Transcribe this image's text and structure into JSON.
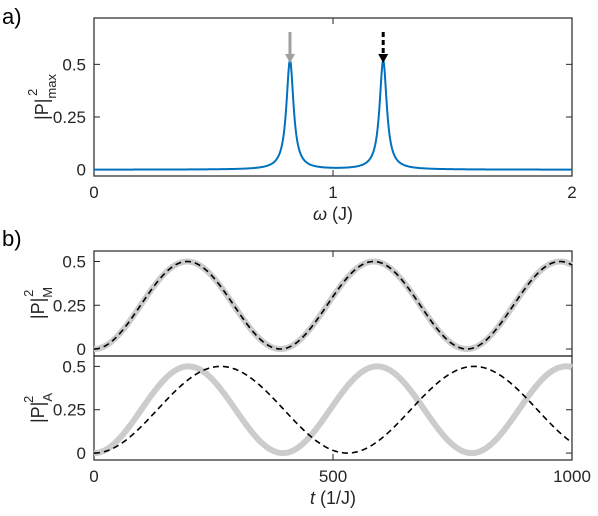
{
  "chart_data": [
    {
      "type": "line",
      "panel_label": "a)",
      "xlabel_symbol": "ω",
      "xlabel_unit": " (J)",
      "ylabel_base": "|P|",
      "ylabel_sup": "2",
      "ylabel_sub": "max",
      "xlim": [
        0,
        2
      ],
      "ylim": [
        -0.03,
        0.72
      ],
      "xticks": [
        0,
        1,
        2
      ],
      "xtick_labels": [
        "0",
        "1",
        "2"
      ],
      "yticks": [
        0,
        0.25,
        0.5
      ],
      "ytick_labels": [
        "0",
        "0.25",
        "0.5"
      ],
      "series": [
        {
          "color": "#0072BD",
          "peaks": [
            {
              "x": 0.82,
              "y": 0.52
            },
            {
              "x": 1.21,
              "y": 0.52
            }
          ],
          "width": 0.018
        }
      ],
      "annotations": [
        {
          "type": "arrow",
          "x": 0.82,
          "style": "solid",
          "color": "#a0a0a0"
        },
        {
          "type": "arrow",
          "x": 1.21,
          "style": "dashed",
          "color": "#000000"
        }
      ]
    },
    {
      "type": "line",
      "panel_label": "b)",
      "ylabel_base": "|P|",
      "ylabel_sup": "2",
      "ylabel_sub": "M",
      "xlim": [
        0,
        1000
      ],
      "ylim": [
        -0.04,
        0.56
      ],
      "yticks": [
        0,
        0.25,
        0.5
      ],
      "ytick_labels": [
        "0",
        "0.25",
        "0.5"
      ],
      "series": [
        {
          "color": "#cccccc",
          "style": "solid",
          "amplitude": 0.25,
          "period": 390
        },
        {
          "color": "#000000",
          "style": "dashed",
          "amplitude": 0.25,
          "period": 390
        }
      ]
    },
    {
      "type": "line",
      "ylabel_base": "|P|",
      "ylabel_sup": "2",
      "ylabel_sub": "A",
      "xlabel_symbol": "t",
      "xlabel_unit": " (1/J)",
      "xlim": [
        0,
        1000
      ],
      "ylim": [
        -0.04,
        0.56
      ],
      "xticks": [
        0,
        500,
        1000
      ],
      "xtick_labels": [
        "0",
        "500",
        "1000"
      ],
      "yticks": [
        0,
        0.25,
        0.5
      ],
      "ytick_labels": [
        "0",
        "0.25",
        "0.5"
      ],
      "series": [
        {
          "color": "#cccccc",
          "style": "solid",
          "amplitude": 0.25,
          "period": 395
        },
        {
          "color": "#000000",
          "style": "dashed",
          "amplitude": 0.25,
          "period": 530
        }
      ]
    }
  ]
}
